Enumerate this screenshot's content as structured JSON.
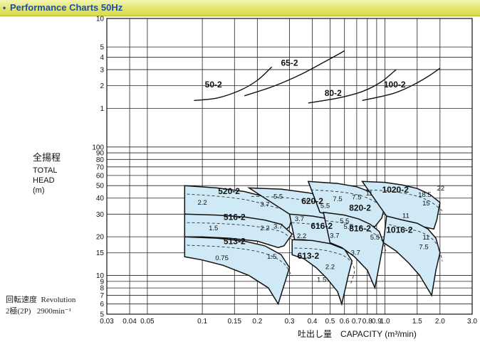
{
  "header": {
    "bullet": "•",
    "title": "Performance Charts 50Hz"
  },
  "chart_data": {
    "type": "line",
    "title": "Performance Charts 50Hz",
    "xscale": "log",
    "yscale": "log",
    "xlim": [
      0.03,
      3.0
    ],
    "ylim": [
      5,
      1000
    ],
    "x_ticks": [
      {
        "v": 0.03,
        "t": "0.03"
      },
      {
        "v": 0.04,
        "t": "0.04"
      },
      {
        "v": 0.05,
        "t": "0.05"
      },
      {
        "v": 0.1,
        "t": "0.1"
      },
      {
        "v": 0.15,
        "t": "0.15"
      },
      {
        "v": 0.2,
        "t": "0.2"
      },
      {
        "v": 0.3,
        "t": "0.3"
      },
      {
        "v": 0.4,
        "t": "0.4"
      },
      {
        "v": 0.5,
        "t": "0.5"
      },
      {
        "v": 0.6,
        "t": "0.6"
      },
      {
        "v": 0.7,
        "t": "0.7"
      },
      {
        "v": 0.8,
        "t": "0.8"
      },
      {
        "v": 0.9,
        "t": "0.9"
      },
      {
        "v": 1.0,
        "t": "1.0"
      },
      {
        "v": 1.5,
        "t": "1.5"
      },
      {
        "v": 2.0,
        "t": "2.0"
      },
      {
        "v": 3.0,
        "t": "3.0"
      }
    ],
    "y_ticks": [
      {
        "v": 5,
        "t": "5"
      },
      {
        "v": 6,
        "t": "6"
      },
      {
        "v": 7,
        "t": "7"
      },
      {
        "v": 8,
        "t": "8"
      },
      {
        "v": 9,
        "t": "9"
      },
      {
        "v": 10,
        "t": "10"
      },
      {
        "v": 15,
        "t": "15"
      },
      {
        "v": 20,
        "t": "20"
      },
      {
        "v": 30,
        "t": "30"
      },
      {
        "v": 40,
        "t": "40"
      },
      {
        "v": 50,
        "t": "50"
      },
      {
        "v": 60,
        "t": "60"
      },
      {
        "v": 70,
        "t": "70"
      },
      {
        "v": 80,
        "t": "80"
      },
      {
        "v": 90,
        "t": "90"
      },
      {
        "v": 100,
        "t": "100"
      },
      {
        "v": 200,
        "t": "1"
      },
      {
        "v": 300,
        "t": "2"
      },
      {
        "v": 400,
        "t": "3"
      },
      {
        "v": 500,
        "t": "4"
      },
      {
        "v": 600,
        "t": "5"
      },
      {
        "v": 1000,
        "t": "10"
      }
    ],
    "xlabel": "吐出し量　CAPACITY (m³/min)",
    "ylabel_jp": "全揚程",
    "ylabel_lines": [
      "TOTAL",
      "HEAD",
      "(m)"
    ],
    "grid": true,
    "pump_regions": [
      {
        "model": "520-2",
        "pts": [
          [
            0.08,
            50
          ],
          [
            0.12,
            48
          ],
          [
            0.17,
            45
          ],
          [
            0.22,
            41
          ],
          [
            0.28,
            37
          ],
          [
            0.32,
            32.5
          ],
          [
            0.3,
            24
          ],
          [
            0.27,
            21
          ],
          [
            0.21,
            24
          ],
          [
            0.15,
            26.5
          ],
          [
            0.11,
            28.5
          ],
          [
            0.08,
            30
          ]
        ]
      },
      {
        "model": "516-2",
        "pts": [
          [
            0.08,
            30
          ],
          [
            0.12,
            29.5
          ],
          [
            0.17,
            28.5
          ],
          [
            0.22,
            27
          ],
          [
            0.27,
            25
          ],
          [
            0.31,
            21
          ],
          [
            0.28,
            17
          ],
          [
            0.26,
            16.5
          ],
          [
            0.2,
            18.5
          ],
          [
            0.14,
            19.5
          ],
          [
            0.1,
            20
          ],
          [
            0.08,
            20
          ]
        ]
      },
      {
        "model": "513-2",
        "pts": [
          [
            0.08,
            20
          ],
          [
            0.12,
            19.5
          ],
          [
            0.17,
            18.5
          ],
          [
            0.22,
            17
          ],
          [
            0.27,
            14.5
          ],
          [
            0.3,
            11.5
          ],
          [
            0.26,
            6
          ],
          [
            0.23,
            8
          ],
          [
            0.18,
            10
          ],
          [
            0.13,
            12
          ],
          [
            0.1,
            13.2
          ],
          [
            0.08,
            14
          ]
        ]
      },
      {
        "model": "620-2",
        "pts": [
          [
            0.18,
            48
          ],
          [
            0.27,
            47
          ],
          [
            0.38,
            44
          ],
          [
            0.48,
            41
          ],
          [
            0.58,
            37
          ],
          [
            0.63,
            31
          ],
          [
            0.58,
            25
          ],
          [
            0.52,
            24
          ],
          [
            0.42,
            24
          ],
          [
            0.36,
            25
          ],
          [
            0.32,
            28
          ],
          [
            0.3,
            30
          ]
        ]
      },
      {
        "model": "616-2",
        "pts": [
          [
            0.3,
            30
          ],
          [
            0.4,
            29
          ],
          [
            0.5,
            27.5
          ],
          [
            0.57,
            26
          ],
          [
            0.63,
            24
          ],
          [
            0.65,
            21
          ],
          [
            0.62,
            16.5
          ],
          [
            0.58,
            15
          ],
          [
            0.5,
            17
          ],
          [
            0.42,
            18.3
          ],
          [
            0.36,
            19
          ],
          [
            0.32,
            19
          ]
        ]
      },
      {
        "model": "613-2",
        "pts": [
          [
            0.31,
            19
          ],
          [
            0.4,
            18.7
          ],
          [
            0.5,
            17.7
          ],
          [
            0.6,
            16
          ],
          [
            0.66,
            13
          ],
          [
            0.63,
            10
          ],
          [
            0.58,
            6
          ],
          [
            0.55,
            7.5
          ],
          [
            0.48,
            9.5
          ],
          [
            0.42,
            11.5
          ],
          [
            0.36,
            13.5
          ],
          [
            0.31,
            14.5
          ]
        ]
      },
      {
        "model": "820-2",
        "pts": [
          [
            0.38,
            54
          ],
          [
            0.55,
            52
          ],
          [
            0.7,
            49
          ],
          [
            0.82,
            45
          ],
          [
            0.93,
            40
          ],
          [
            1.0,
            35
          ],
          [
            0.96,
            28
          ],
          [
            0.88,
            24
          ],
          [
            0.72,
            25
          ],
          [
            0.6,
            27
          ],
          [
            0.5,
            29.5
          ],
          [
            0.44,
            31
          ]
        ]
      },
      {
        "model": "816-2",
        "pts": [
          [
            0.46,
            31
          ],
          [
            0.6,
            29.5
          ],
          [
            0.72,
            27.5
          ],
          [
            0.83,
            25
          ],
          [
            0.93,
            22
          ],
          [
            0.98,
            18
          ],
          [
            0.93,
            12
          ],
          [
            0.88,
            8
          ],
          [
            0.8,
            11
          ],
          [
            0.68,
            14
          ],
          [
            0.58,
            16.5
          ],
          [
            0.5,
            18
          ]
        ]
      },
      {
        "model": "1020-2",
        "pts": [
          [
            0.75,
            54
          ],
          [
            1.0,
            53
          ],
          [
            1.25,
            50.5
          ],
          [
            1.5,
            47.5
          ],
          [
            1.75,
            43
          ],
          [
            2.0,
            37
          ],
          [
            1.92,
            27
          ],
          [
            1.85,
            23
          ],
          [
            1.6,
            24
          ],
          [
            1.35,
            25
          ],
          [
            1.15,
            27
          ],
          [
            1.02,
            29
          ]
        ]
      },
      {
        "model": "1016-2",
        "pts": [
          [
            1.02,
            29
          ],
          [
            1.25,
            27
          ],
          [
            1.5,
            25.5
          ],
          [
            1.72,
            23
          ],
          [
            1.9,
            19.5
          ],
          [
            2.0,
            15
          ],
          [
            1.9,
            11
          ],
          [
            1.8,
            7
          ],
          [
            1.55,
            10
          ],
          [
            1.35,
            12.5
          ],
          [
            1.15,
            15.5
          ],
          [
            0.98,
            18
          ]
        ]
      }
    ],
    "upper_curves": [
      {
        "model": "50-2",
        "pts": [
          [
            0.09,
            230
          ],
          [
            0.12,
            240
          ],
          [
            0.16,
            275
          ],
          [
            0.2,
            330
          ],
          [
            0.24,
            420
          ]
        ]
      },
      {
        "model": "65-2",
        "pts": [
          [
            0.17,
            250
          ],
          [
            0.25,
            300
          ],
          [
            0.35,
            370
          ],
          [
            0.48,
            470
          ],
          [
            0.6,
            560
          ]
        ]
      },
      {
        "model": "80-2",
        "pts": [
          [
            0.38,
            220
          ],
          [
            0.55,
            240
          ],
          [
            0.75,
            270
          ],
          [
            0.95,
            320
          ],
          [
            1.15,
            400
          ]
        ]
      },
      {
        "model": "100-2",
        "pts": [
          [
            0.75,
            230
          ],
          [
            1.1,
            260
          ],
          [
            1.4,
            300
          ],
          [
            1.7,
            350
          ],
          [
            2.0,
            410
          ]
        ]
      }
    ],
    "model_labels": [
      {
        "t": "50-2",
        "x": 0.115,
        "y": 290
      },
      {
        "t": "65-2",
        "x": 0.3,
        "y": 430
      },
      {
        "t": "80-2",
        "x": 0.52,
        "y": 250
      },
      {
        "t": "100-2",
        "x": 1.13,
        "y": 290
      },
      {
        "t": "520-2",
        "x": 0.14,
        "y": 43
      },
      {
        "t": "620-2",
        "x": 0.4,
        "y": 36
      },
      {
        "t": "820-2",
        "x": 0.73,
        "y": 32
      },
      {
        "t": "1020-2",
        "x": 1.14,
        "y": 44
      },
      {
        "t": "516-2",
        "x": 0.15,
        "y": 27
      },
      {
        "t": "616-2",
        "x": 0.45,
        "y": 23
      },
      {
        "t": "816-2",
        "x": 0.73,
        "y": 22
      },
      {
        "t": "1016-2",
        "x": 1.2,
        "y": 21.5
      },
      {
        "t": "513-2",
        "x": 0.15,
        "y": 17.5
      },
      {
        "t": "613-2",
        "x": 0.38,
        "y": 13.5
      }
    ],
    "kw_labels": [
      {
        "t": "2.2",
        "x": 0.1,
        "y": 35.5
      },
      {
        "t": "3.7",
        "x": 0.22,
        "y": 34.5
      },
      {
        "t": "5.5",
        "x": 0.26,
        "y": 39.5
      },
      {
        "t": "1.5",
        "x": 0.115,
        "y": 22.5
      },
      {
        "t": "2.2",
        "x": 0.22,
        "y": 22.5
      },
      {
        "t": "3.7",
        "x": 0.26,
        "y": 23.2
      },
      {
        "t": "0.75",
        "x": 0.128,
        "y": 13.2
      },
      {
        "t": "1.5",
        "x": 0.24,
        "y": 13.5
      },
      {
        "t": "3.7",
        "x": 0.34,
        "y": 26.5
      },
      {
        "t": "5.5",
        "x": 0.47,
        "y": 33.5
      },
      {
        "t": "7.5",
        "x": 0.55,
        "y": 38
      },
      {
        "t": "5.5",
        "x": 0.6,
        "y": 25.5
      },
      {
        "t": "3.7",
        "x": 0.53,
        "y": 19.7
      },
      {
        "t": "2.2",
        "x": 0.35,
        "y": 19.5
      },
      {
        "t": "2.2",
        "x": 0.5,
        "y": 11.2
      },
      {
        "t": "1.5",
        "x": 0.45,
        "y": 8.9
      },
      {
        "t": "7.5",
        "x": 0.7,
        "y": 39
      },
      {
        "t": "11",
        "x": 0.82,
        "y": 42
      },
      {
        "t": "5.5",
        "x": 0.63,
        "y": 23
      },
      {
        "t": "5.5",
        "x": 0.88,
        "y": 19
      },
      {
        "t": "3.7",
        "x": 0.69,
        "y": 14.5
      },
      {
        "t": "18.5",
        "x": 1.65,
        "y": 41
      },
      {
        "t": "22",
        "x": 2.02,
        "y": 46
      },
      {
        "t": "15",
        "x": 1.68,
        "y": 35
      },
      {
        "t": "11",
        "x": 1.3,
        "y": 28
      },
      {
        "t": "11",
        "x": 1.68,
        "y": 19
      },
      {
        "t": "7.5",
        "x": 1.63,
        "y": 16
      }
    ]
  },
  "footer": {
    "rotation_jp": "回転速度",
    "rotation_en": "Revolution",
    "poles": "2極(2P)",
    "rpm": "2900min⁻¹"
  }
}
